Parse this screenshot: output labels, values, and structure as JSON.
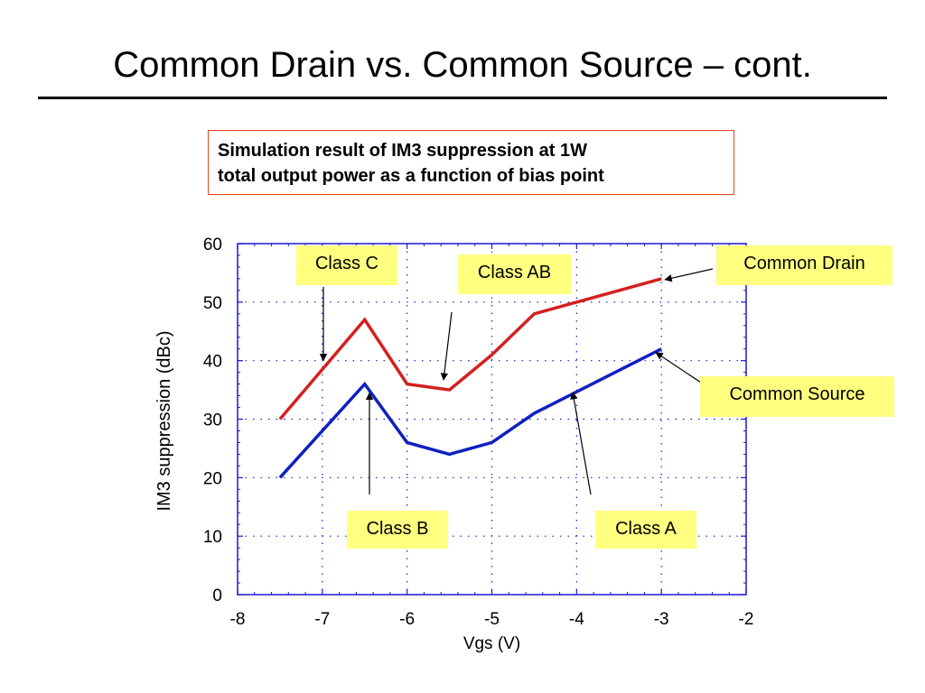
{
  "slide": {
    "title": "Common Drain vs. Common Source – cont.",
    "caption_line1": "Simulation result of IM3 suppression at 1W",
    "caption_line2": "total output power as a function of bias point"
  },
  "callouts": {
    "class_c": "Class C",
    "class_ab": "Class AB",
    "common_drain": "Common Drain",
    "common_source": "Common Source",
    "class_b": "Class B",
    "class_a": "Class A"
  },
  "chart_data": {
    "type": "line",
    "xlabel": "Vgs (V)",
    "ylabel": "IM3 suppression (dBc)",
    "xlim": [
      -8,
      -2
    ],
    "ylim": [
      0,
      60
    ],
    "xticks": [
      -8,
      -7,
      -6,
      -5,
      -4,
      -3,
      -2
    ],
    "yticks": [
      0,
      10,
      20,
      30,
      40,
      50,
      60
    ],
    "grid": true,
    "series": [
      {
        "name": "Common Drain",
        "color": "#d42020",
        "x": [
          -7.5,
          -6.5,
          -6.0,
          -5.5,
          -5.0,
          -4.5,
          -3.0
        ],
        "y": [
          30,
          47,
          36,
          35,
          41,
          48,
          54
        ]
      },
      {
        "name": "Common Source",
        "color": "#1020c0",
        "x": [
          -7.5,
          -6.5,
          -6.0,
          -5.5,
          -5.0,
          -4.5,
          -3.0
        ],
        "y": [
          20,
          36,
          26,
          24,
          26,
          31,
          42
        ]
      }
    ]
  }
}
